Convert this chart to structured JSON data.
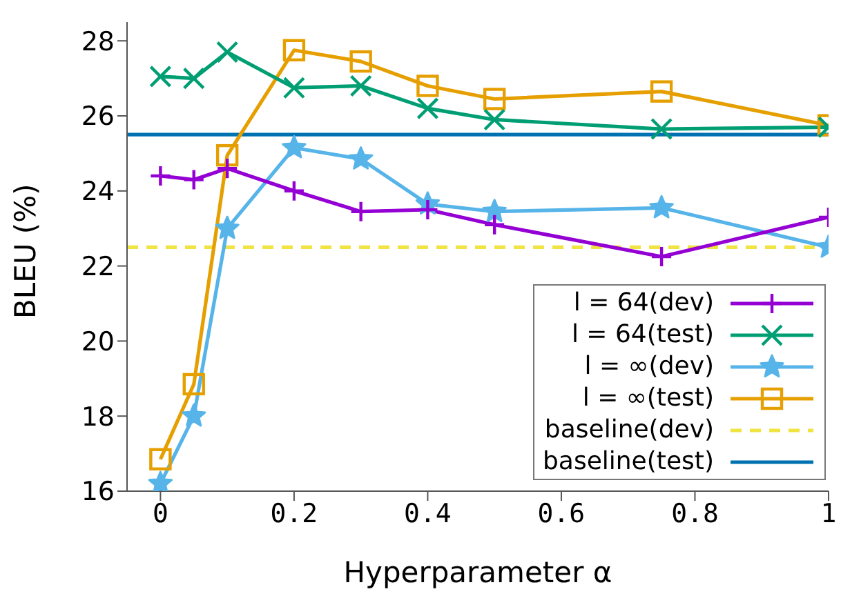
{
  "chart_data": {
    "type": "line",
    "xlabel": "Hyperparameter α",
    "ylabel": "BLEU (%)",
    "x": [
      0,
      0.05,
      0.1,
      0.2,
      0.3,
      0.4,
      0.5,
      0.75,
      1
    ],
    "series": [
      {
        "name": "l = 64(dev)",
        "color": "#9400d3",
        "marker": "plus",
        "values": [
          24.4,
          24.3,
          24.6,
          24.0,
          23.45,
          23.5,
          23.1,
          22.25,
          23.3
        ]
      },
      {
        "name": "l = 64(test)",
        "color": "#009e73",
        "marker": "cross",
        "values": [
          27.05,
          27.0,
          27.7,
          26.75,
          26.8,
          26.2,
          25.9,
          25.65,
          25.7
        ]
      },
      {
        "name": "l = ∞(dev)",
        "color": "#56b4e9",
        "marker": "star",
        "values": [
          16.2,
          18.0,
          23.0,
          25.15,
          24.85,
          23.65,
          23.45,
          23.55,
          22.5
        ]
      },
      {
        "name": "l = ∞(test)",
        "color": "#e69f00",
        "marker": "square",
        "values": [
          16.85,
          18.85,
          24.95,
          27.75,
          27.45,
          26.8,
          26.45,
          26.65,
          25.75
        ]
      }
    ],
    "ref_lines": [
      {
        "axis": "y",
        "value": 22.5,
        "label": "baseline(dev)",
        "color": "#f0e442",
        "line_style": "dashed"
      },
      {
        "axis": "y",
        "value": 25.5,
        "label": "baseline(test)",
        "color": "#0072b2",
        "line_style": "solid"
      }
    ],
    "xlim": [
      -0.05,
      1.0
    ],
    "xticks": [
      0,
      0.2,
      0.4,
      0.6,
      0.8,
      1
    ],
    "ylim": [
      16,
      28.5
    ],
    "yticks": [
      16,
      18,
      20,
      22,
      24,
      26,
      28
    ],
    "grid": false,
    "legend": "bottom right"
  }
}
